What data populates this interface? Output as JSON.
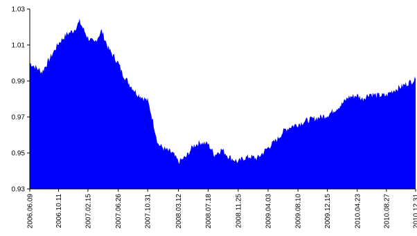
{
  "chart_data": {
    "type": "area",
    "title": "",
    "xlabel": "",
    "ylabel": "",
    "ylim": [
      0.93,
      1.03
    ],
    "yticks": [
      "0.93",
      "0.95",
      "0.97",
      "0.99",
      "1.01",
      "1.03"
    ],
    "grid": false,
    "legend": "none",
    "fill_color": "#0000ff",
    "x_tick_labels": [
      "2006.06.09",
      "2006.10.11",
      "2007.02.15",
      "2007.06.26",
      "2007.10.31",
      "2008.03.12",
      "2008.07.18",
      "2008.11.25",
      "2009.04.03",
      "2009.08.10",
      "2009.12.15",
      "2010.04.23",
      "2010.08.27",
      "2010.12.31"
    ],
    "series": [
      {
        "x": [
          "2006.06.09",
          "2006.07.01",
          "2006.08.01",
          "2006.09.01",
          "2006.10.11",
          "2006.11.15",
          "2006.12.15",
          "2007.01.10",
          "2007.02.15",
          "2007.03.15",
          "2007.04.15",
          "2007.05.15",
          "2007.06.26",
          "2007.07.15",
          "2007.08.15",
          "2007.09.15",
          "2007.10.31",
          "2007.11.15",
          "2007.12.15",
          "2008.01.15",
          "2008.02.15",
          "2008.03.12",
          "2008.04.15",
          "2008.05.15",
          "2008.06.15",
          "2008.07.18",
          "2008.08.15",
          "2008.09.15",
          "2008.10.15",
          "2008.11.25",
          "2008.12.15",
          "2009.01.15",
          "2009.02.15",
          "2009.04.03",
          "2009.05.15",
          "2009.06.15",
          "2009.07.15",
          "2009.08.10",
          "2009.09.15",
          "2009.10.15",
          "2009.11.15",
          "2009.12.15",
          "2010.01.15",
          "2010.02.15",
          "2010.03.15",
          "2010.04.23",
          "2010.05.15",
          "2010.06.15",
          "2010.07.15",
          "2010.08.27",
          "2010.09.15",
          "2010.10.15",
          "2010.11.15",
          "2010.12.31"
        ],
        "values": [
          1.0,
          0.998,
          0.995,
          1.002,
          1.011,
          1.016,
          1.018,
          1.023,
          1.014,
          1.011,
          1.018,
          1.008,
          1.0,
          0.994,
          0.988,
          0.983,
          0.979,
          0.972,
          0.955,
          0.952,
          0.95,
          0.945,
          0.948,
          0.954,
          0.956,
          0.955,
          0.949,
          0.952,
          0.948,
          0.945,
          0.947,
          0.948,
          0.947,
          0.953,
          0.958,
          0.963,
          0.965,
          0.966,
          0.968,
          0.969,
          0.97,
          0.971,
          0.974,
          0.977,
          0.981,
          0.982,
          0.98,
          0.983,
          0.982,
          0.982,
          0.984,
          0.986,
          0.988,
          0.991
        ]
      }
    ]
  }
}
